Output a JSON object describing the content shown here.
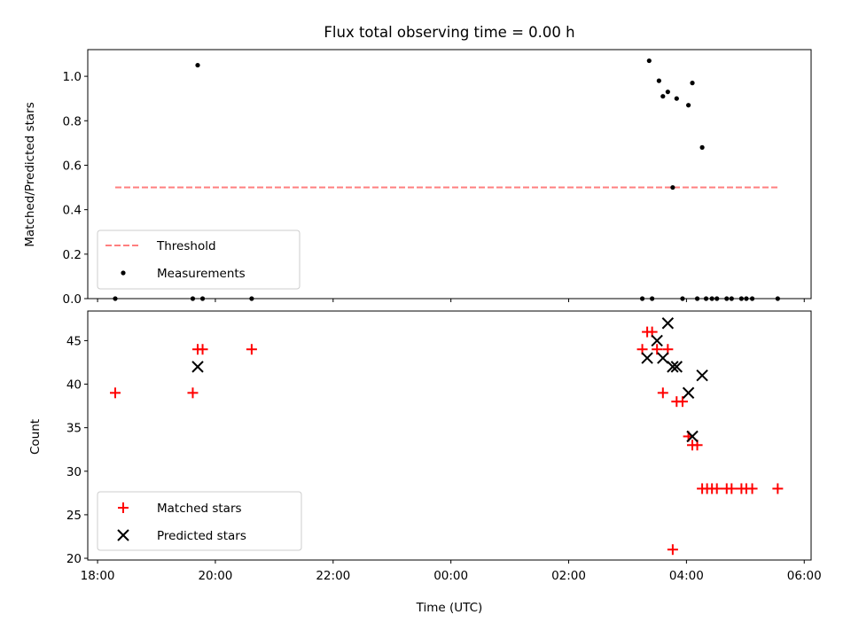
{
  "chart_data": [
    {
      "type": "scatter",
      "title": "Flux total observing time = 0.00 h",
      "xlabel": "",
      "ylabel": "Matched/Predicted stars",
      "ylim": [
        0,
        1.12
      ],
      "yticks": [
        "0.0",
        "0.2",
        "0.4",
        "0.6",
        "0.8",
        "1.0"
      ],
      "xlim": [
        "17:50",
        "06:07"
      ],
      "x_tick_labels_shown": false,
      "legend_position": "lower-left",
      "threshold": {
        "name": "Threshold",
        "color": "#ff7f7f",
        "style": "dashed",
        "x_start": "18:18",
        "x_end": "05:33",
        "y": 0.5
      },
      "series": [
        {
          "name": "Measurements",
          "color": "#000000",
          "marker": "dot",
          "points": [
            {
              "x": "18:18",
              "y": 0.0
            },
            {
              "x": "19:37",
              "y": 0.0
            },
            {
              "x": "19:42",
              "y": 1.05
            },
            {
              "x": "19:47",
              "y": 0.0
            },
            {
              "x": "20:37",
              "y": 0.0
            },
            {
              "x": "03:15",
              "y": 0.0
            },
            {
              "x": "03:22",
              "y": 1.07
            },
            {
              "x": "03:25",
              "y": 0.0
            },
            {
              "x": "03:32",
              "y": 0.98
            },
            {
              "x": "03:36",
              "y": 0.91
            },
            {
              "x": "03:41",
              "y": 0.93
            },
            {
              "x": "03:46",
              "y": 0.5
            },
            {
              "x": "03:50",
              "y": 0.9
            },
            {
              "x": "03:56",
              "y": 0.0
            },
            {
              "x": "04:02",
              "y": 0.87
            },
            {
              "x": "04:06",
              "y": 0.97
            },
            {
              "x": "04:11",
              "y": 0.0
            },
            {
              "x": "04:16",
              "y": 0.68
            },
            {
              "x": "04:20",
              "y": 0.0
            },
            {
              "x": "04:26",
              "y": 0.0
            },
            {
              "x": "04:31",
              "y": 0.0
            },
            {
              "x": "04:41",
              "y": 0.0
            },
            {
              "x": "04:46",
              "y": 0.0
            },
            {
              "x": "04:56",
              "y": 0.0
            },
            {
              "x": "05:01",
              "y": 0.0
            },
            {
              "x": "05:07",
              "y": 0.0
            },
            {
              "x": "05:33",
              "y": 0.0
            }
          ]
        }
      ]
    },
    {
      "type": "scatter",
      "title": "",
      "xlabel": "Time (UTC)",
      "ylabel": "Count",
      "ylim": [
        19.8,
        48.4
      ],
      "yticks": [
        "20",
        "25",
        "30",
        "35",
        "40",
        "45"
      ],
      "xlim": [
        "17:50",
        "06:07"
      ],
      "xticks": [
        "18:00",
        "20:00",
        "22:00",
        "00:00",
        "02:00",
        "04:00",
        "06:00"
      ],
      "legend_position": "lower-left",
      "series": [
        {
          "name": "Matched stars",
          "color": "#ff0000",
          "marker": "plus",
          "points": [
            {
              "x": "18:18",
              "y": 39
            },
            {
              "x": "19:37",
              "y": 39
            },
            {
              "x": "19:42",
              "y": 44
            },
            {
              "x": "19:47",
              "y": 44
            },
            {
              "x": "20:37",
              "y": 44
            },
            {
              "x": "03:15",
              "y": 44
            },
            {
              "x": "03:20",
              "y": 46
            },
            {
              "x": "03:25",
              "y": 46
            },
            {
              "x": "03:30",
              "y": 44
            },
            {
              "x": "03:36",
              "y": 39
            },
            {
              "x": "03:41",
              "y": 44
            },
            {
              "x": "03:46",
              "y": 21
            },
            {
              "x": "03:50",
              "y": 38
            },
            {
              "x": "03:56",
              "y": 38
            },
            {
              "x": "04:02",
              "y": 34
            },
            {
              "x": "04:06",
              "y": 33
            },
            {
              "x": "04:11",
              "y": 33
            },
            {
              "x": "04:16",
              "y": 28
            },
            {
              "x": "04:21",
              "y": 28
            },
            {
              "x": "04:26",
              "y": 28
            },
            {
              "x": "04:31",
              "y": 28
            },
            {
              "x": "04:41",
              "y": 28
            },
            {
              "x": "04:46",
              "y": 28
            },
            {
              "x": "04:56",
              "y": 28
            },
            {
              "x": "05:01",
              "y": 28
            },
            {
              "x": "05:07",
              "y": 28
            },
            {
              "x": "05:33",
              "y": 28
            }
          ]
        },
        {
          "name": "Predicted stars",
          "color": "#000000",
          "marker": "x",
          "points": [
            {
              "x": "19:42",
              "y": 42
            },
            {
              "x": "03:20",
              "y": 43
            },
            {
              "x": "03:30",
              "y": 45
            },
            {
              "x": "03:36",
              "y": 43
            },
            {
              "x": "03:41",
              "y": 47
            },
            {
              "x": "03:46",
              "y": 42
            },
            {
              "x": "03:50",
              "y": 42
            },
            {
              "x": "04:02",
              "y": 39
            },
            {
              "x": "04:06",
              "y": 34
            },
            {
              "x": "04:16",
              "y": 41
            }
          ]
        }
      ]
    }
  ]
}
